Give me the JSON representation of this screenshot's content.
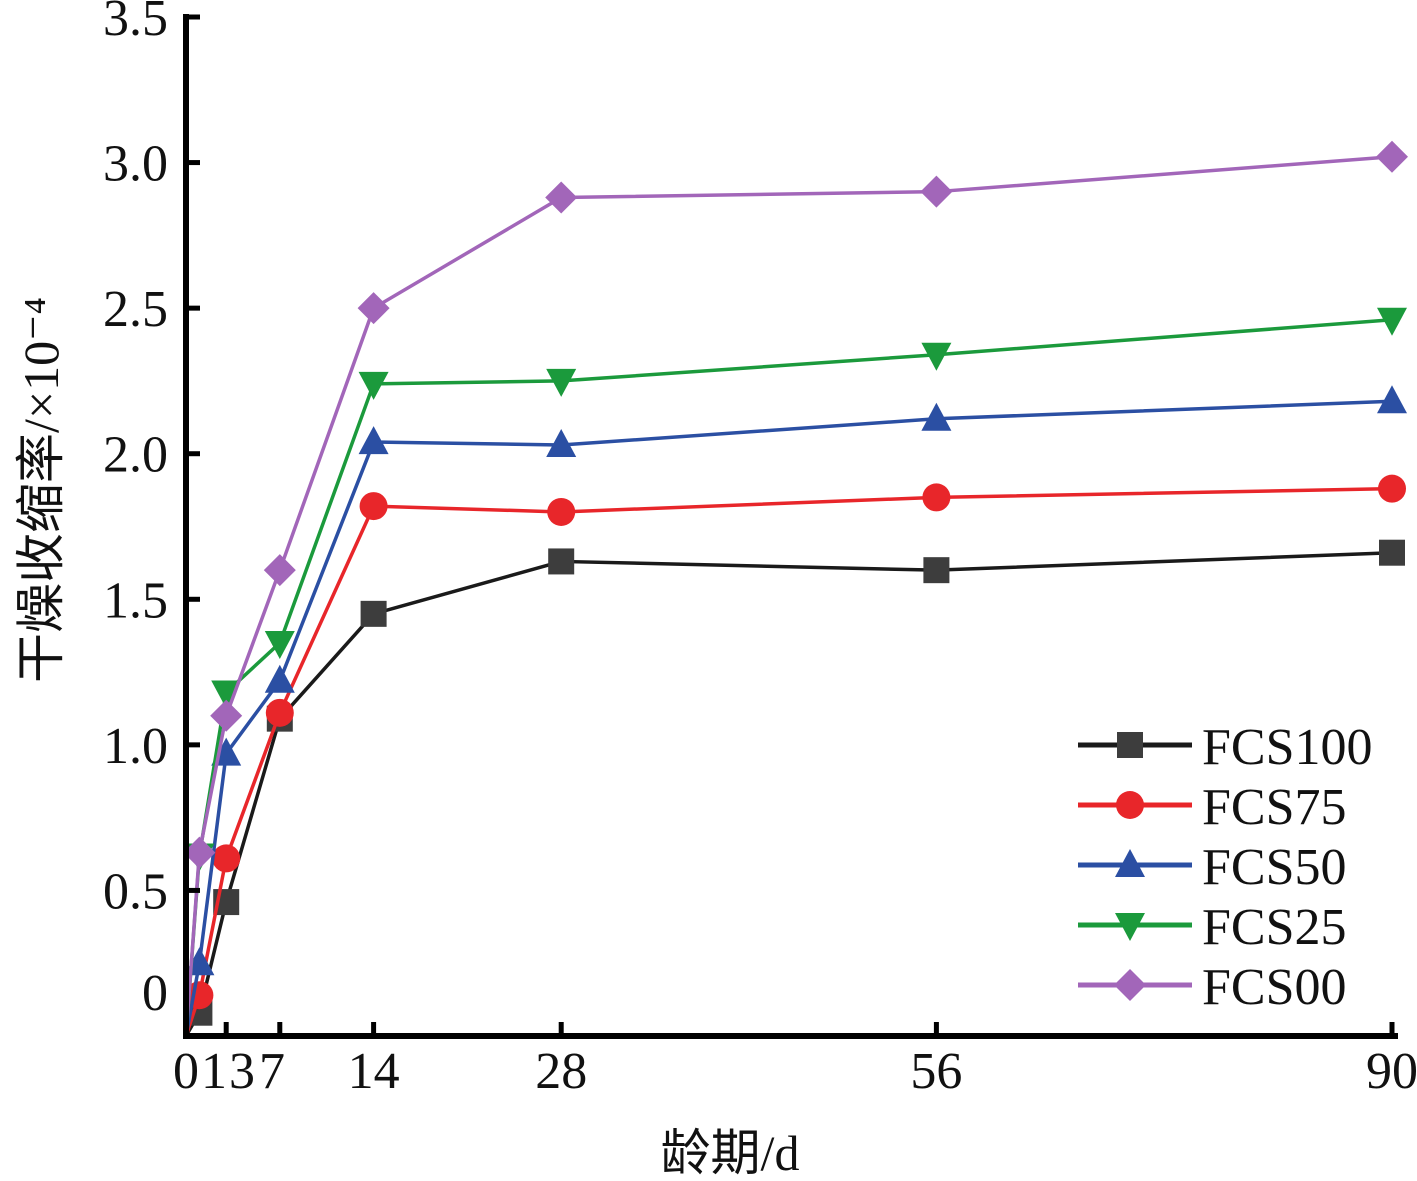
{
  "chart_data": {
    "type": "line",
    "xlabel": "龄期/d",
    "ylabel": "干燥收缩率/×10⁻⁴",
    "x_ticks": [
      0,
      1,
      3,
      7,
      14,
      28,
      56,
      90
    ],
    "x_tick_labels": [
      "0",
      "1",
      "3",
      "7",
      "14",
      "28",
      "56",
      "90"
    ],
    "y_ticks": [
      0,
      0.5,
      1.0,
      1.5,
      2.0,
      2.5,
      3.0,
      3.5
    ],
    "y_tick_labels": [
      "0",
      "0.5",
      "1.0",
      "1.5",
      "2.0",
      "2.5",
      "3.0",
      "3.5"
    ],
    "xlim": [
      0,
      90
    ],
    "ylim": [
      0,
      3.5
    ],
    "grid": false,
    "legend_position": "bottom-right",
    "x": [
      0,
      1,
      3,
      7,
      14,
      28,
      56,
      90
    ],
    "series": [
      {
        "name": "FCS100",
        "color": "#1a1a1a",
        "marker_color": "#3d3d3d",
        "marker": "square",
        "values": [
          0,
          0.08,
          0.46,
          1.09,
          1.45,
          1.63,
          1.6,
          1.66
        ]
      },
      {
        "name": "FCS75",
        "color": "#e8262a",
        "marker_color": "#e8262a",
        "marker": "circle",
        "values": [
          0,
          0.14,
          0.61,
          1.11,
          1.82,
          1.8,
          1.85,
          1.88
        ]
      },
      {
        "name": "FCS50",
        "color": "#2b4fa3",
        "marker_color": "#2b4fa3",
        "marker": "triangle-up",
        "values": [
          0,
          0.25,
          0.97,
          1.22,
          2.04,
          2.03,
          2.12,
          2.18
        ]
      },
      {
        "name": "FCS25",
        "color": "#1b9a3c",
        "marker_color": "#1b9a3c",
        "marker": "triangle-down",
        "values": [
          0,
          0.62,
          1.18,
          1.35,
          2.24,
          2.25,
          2.34,
          2.46
        ]
      },
      {
        "name": "FCS00",
        "color": "#a266b9",
        "marker_color": "#a266b9",
        "marker": "diamond",
        "values": [
          0,
          0.63,
          1.1,
          1.6,
          2.5,
          2.88,
          2.9,
          3.02
        ]
      }
    ]
  }
}
